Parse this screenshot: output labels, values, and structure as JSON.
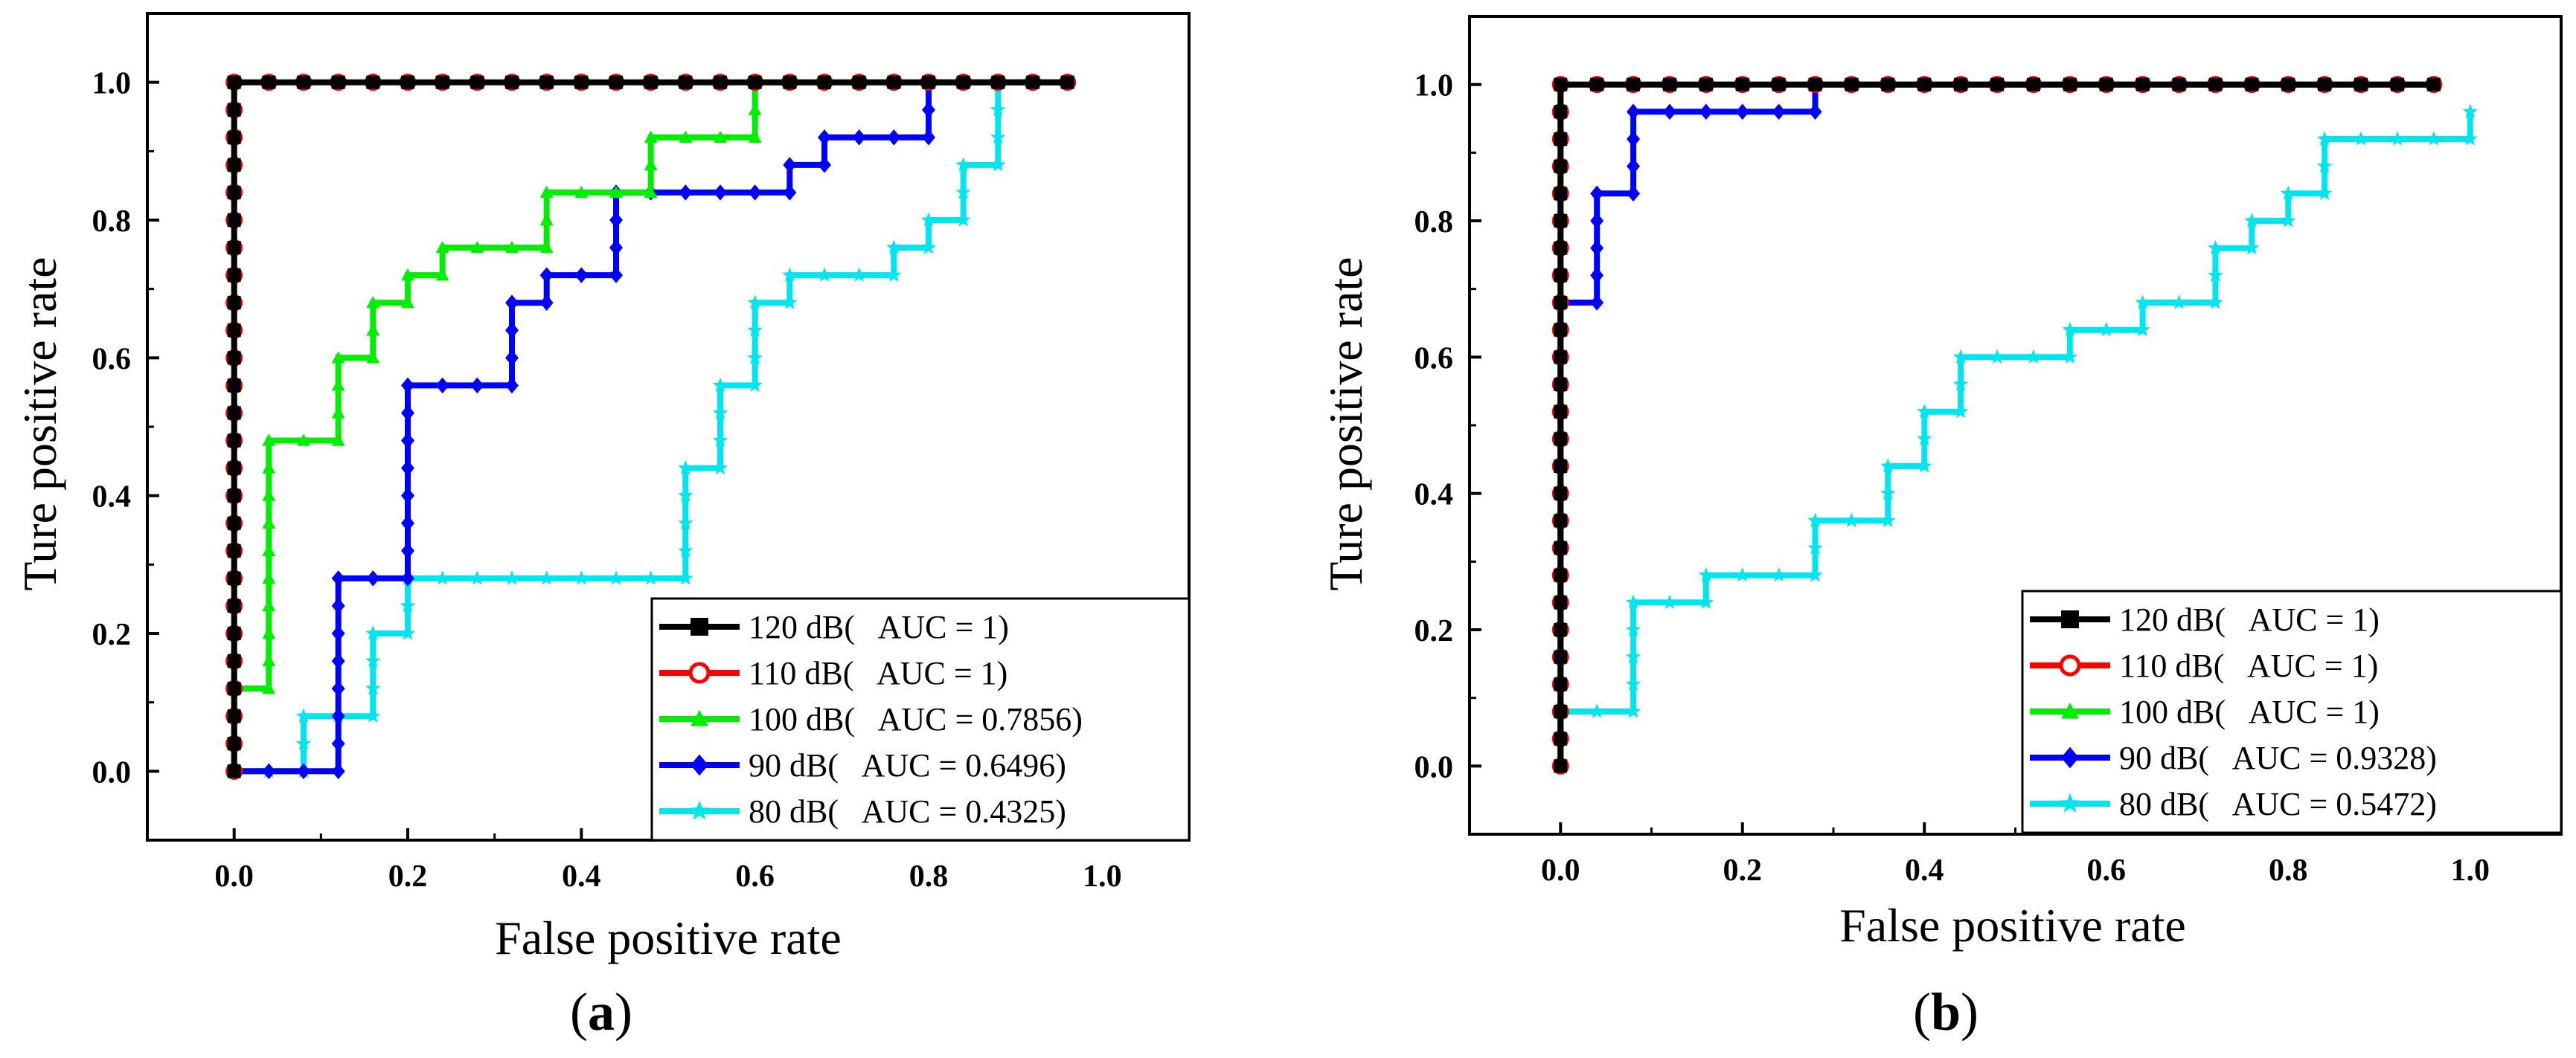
{
  "chart_data": [
    {
      "type": "line",
      "panel": "(a)",
      "panel_letter": "a",
      "xlabel": "False positive rate",
      "ylabel": "Ture positive rate",
      "xlim": [
        -0.1,
        1.1
      ],
      "ylim": [
        -0.1,
        1.1
      ],
      "xticks": [
        "0.0",
        "0.2",
        "0.4",
        "0.6",
        "0.8",
        "1.0"
      ],
      "yticks": [
        "0.0",
        "0.2",
        "0.4",
        "0.6",
        "0.8",
        "1.0"
      ],
      "legend_position": "bottom-right",
      "series": [
        {
          "name": "120 dB(   AUC = 1)",
          "color": "#000000",
          "marker": "square",
          "points": [
            [
              0,
              0
            ],
            [
              0,
              1
            ],
            [
              0.96,
              1
            ]
          ]
        },
        {
          "name": "110 dB(   AUC = 1)",
          "color": "#ff0000",
          "marker": "circle",
          "points": [
            [
              0,
              0
            ],
            [
              0,
              1
            ],
            [
              0.96,
              1
            ]
          ]
        },
        {
          "name": "100 dB(   AUC = 0.7856)",
          "color": "#00ee00",
          "marker": "triangle",
          "points": [
            [
              0,
              0
            ],
            [
              0,
              0.12
            ],
            [
              0.04,
              0.12
            ],
            [
              0.04,
              0.48
            ],
            [
              0.12,
              0.48
            ],
            [
              0.12,
              0.6
            ],
            [
              0.16,
              0.6
            ],
            [
              0.16,
              0.68
            ],
            [
              0.2,
              0.68
            ],
            [
              0.2,
              0.72
            ],
            [
              0.24,
              0.72
            ],
            [
              0.24,
              0.76
            ],
            [
              0.36,
              0.76
            ],
            [
              0.36,
              0.84
            ],
            [
              0.48,
              0.84
            ],
            [
              0.48,
              0.92
            ],
            [
              0.6,
              0.92
            ],
            [
              0.6,
              1
            ],
            [
              0.96,
              1
            ]
          ]
        },
        {
          "name": "90 dB(   AUC = 0.6496)",
          "color": "#0000ff",
          "marker": "diamond",
          "points": [
            [
              0,
              0
            ],
            [
              0.12,
              0
            ],
            [
              0.12,
              0.28
            ],
            [
              0.2,
              0.28
            ],
            [
              0.2,
              0.56
            ],
            [
              0.32,
              0.56
            ],
            [
              0.32,
              0.68
            ],
            [
              0.36,
              0.68
            ],
            [
              0.36,
              0.72
            ],
            [
              0.44,
              0.72
            ],
            [
              0.44,
              0.84
            ],
            [
              0.64,
              0.84
            ],
            [
              0.64,
              0.88
            ],
            [
              0.68,
              0.88
            ],
            [
              0.68,
              0.92
            ],
            [
              0.8,
              0.92
            ],
            [
              0.8,
              1
            ],
            [
              0.96,
              1
            ]
          ]
        },
        {
          "name": "80 dB(   AUC = 0.4325)",
          "color": "#00e5ee",
          "marker": "star",
          "points": [
            [
              0,
              0
            ],
            [
              0.08,
              0
            ],
            [
              0.08,
              0.08
            ],
            [
              0.16,
              0.08
            ],
            [
              0.16,
              0.2
            ],
            [
              0.2,
              0.2
            ],
            [
              0.2,
              0.28
            ],
            [
              0.52,
              0.28
            ],
            [
              0.52,
              0.44
            ],
            [
              0.56,
              0.44
            ],
            [
              0.56,
              0.56
            ],
            [
              0.6,
              0.56
            ],
            [
              0.6,
              0.68
            ],
            [
              0.64,
              0.68
            ],
            [
              0.64,
              0.72
            ],
            [
              0.76,
              0.72
            ],
            [
              0.76,
              0.76
            ],
            [
              0.8,
              0.76
            ],
            [
              0.8,
              0.8
            ],
            [
              0.84,
              0.8
            ],
            [
              0.84,
              0.88
            ],
            [
              0.88,
              0.88
            ],
            [
              0.88,
              1
            ],
            [
              0.96,
              1
            ]
          ]
        }
      ]
    },
    {
      "type": "line",
      "panel": "(b)",
      "panel_letter": "b",
      "xlabel": "False positive rate",
      "ylabel": "Ture positive rate",
      "xlim": [
        -0.1,
        1.1
      ],
      "ylim": [
        -0.1,
        1.1
      ],
      "xticks": [
        "0.0",
        "0.2",
        "0.4",
        "0.6",
        "0.8",
        "1.0"
      ],
      "yticks": [
        "0.0",
        "0.2",
        "0.4",
        "0.6",
        "0.8",
        "1.0"
      ],
      "legend_position": "bottom-right",
      "series": [
        {
          "name": "120 dB(   AUC = 1)",
          "color": "#000000",
          "marker": "square",
          "points": [
            [
              0,
              0
            ],
            [
              0,
              1
            ],
            [
              0.96,
              1
            ]
          ]
        },
        {
          "name": "110 dB(   AUC = 1)",
          "color": "#ff0000",
          "marker": "circle",
          "points": [
            [
              0,
              0
            ],
            [
              0,
              1
            ],
            [
              0.96,
              1
            ]
          ]
        },
        {
          "name": "100 dB(   AUC = 1)",
          "color": "#00ee00",
          "marker": "triangle",
          "points": [
            [
              0,
              0
            ],
            [
              0,
              1
            ],
            [
              0.28,
              1
            ]
          ]
        },
        {
          "name": "90 dB(   AUC = 0.9328)",
          "color": "#0000ff",
          "marker": "diamond",
          "points": [
            [
              0,
              0
            ],
            [
              0,
              0.68
            ],
            [
              0.04,
              0.68
            ],
            [
              0.04,
              0.84
            ],
            [
              0.08,
              0.84
            ],
            [
              0.08,
              0.96
            ],
            [
              0.28,
              0.96
            ],
            [
              0.28,
              1
            ],
            [
              0.96,
              1
            ]
          ]
        },
        {
          "name": "80 dB(   AUC = 0.5472)",
          "color": "#00e5ee",
          "marker": "star",
          "points": [
            [
              0,
              0
            ],
            [
              0,
              0.08
            ],
            [
              0.08,
              0.08
            ],
            [
              0.08,
              0.24
            ],
            [
              0.16,
              0.24
            ],
            [
              0.16,
              0.28
            ],
            [
              0.28,
              0.28
            ],
            [
              0.28,
              0.36
            ],
            [
              0.36,
              0.36
            ],
            [
              0.36,
              0.44
            ],
            [
              0.4,
              0.44
            ],
            [
              0.4,
              0.52
            ],
            [
              0.44,
              0.52
            ],
            [
              0.44,
              0.6
            ],
            [
              0.56,
              0.6
            ],
            [
              0.56,
              0.64
            ],
            [
              0.64,
              0.64
            ],
            [
              0.64,
              0.68
            ],
            [
              0.72,
              0.68
            ],
            [
              0.72,
              0.76
            ],
            [
              0.76,
              0.76
            ],
            [
              0.76,
              0.8
            ],
            [
              0.8,
              0.8
            ],
            [
              0.8,
              0.84
            ],
            [
              0.84,
              0.84
            ],
            [
              0.84,
              0.92
            ],
            [
              1,
              0.92
            ],
            [
              1,
              0.96
            ]
          ]
        }
      ]
    }
  ]
}
